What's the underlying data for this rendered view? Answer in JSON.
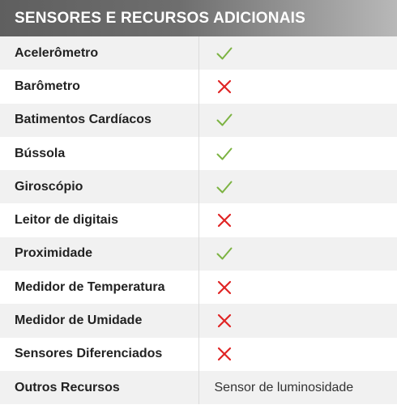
{
  "header": {
    "title": "SENSORES E RECURSOS ADICIONAIS"
  },
  "colors": {
    "check": "#7cb342",
    "cross": "#e02424"
  },
  "rows": [
    {
      "label": "Acelerômetro",
      "status": "yes"
    },
    {
      "label": "Barômetro",
      "status": "no"
    },
    {
      "label": "Batimentos Cardíacos",
      "status": "yes"
    },
    {
      "label": "Bússola",
      "status": "yes"
    },
    {
      "label": "Giroscópio",
      "status": "yes"
    },
    {
      "label": "Leitor de digitais",
      "status": "no"
    },
    {
      "label": "Proximidade",
      "status": "yes"
    },
    {
      "label": "Medidor de Temperatura",
      "status": "no"
    },
    {
      "label": "Medidor de Umidade",
      "status": "no"
    },
    {
      "label": "Sensores Diferenciados",
      "status": "no"
    },
    {
      "label": "Outros Recursos",
      "value": "Sensor de luminosidade"
    }
  ]
}
